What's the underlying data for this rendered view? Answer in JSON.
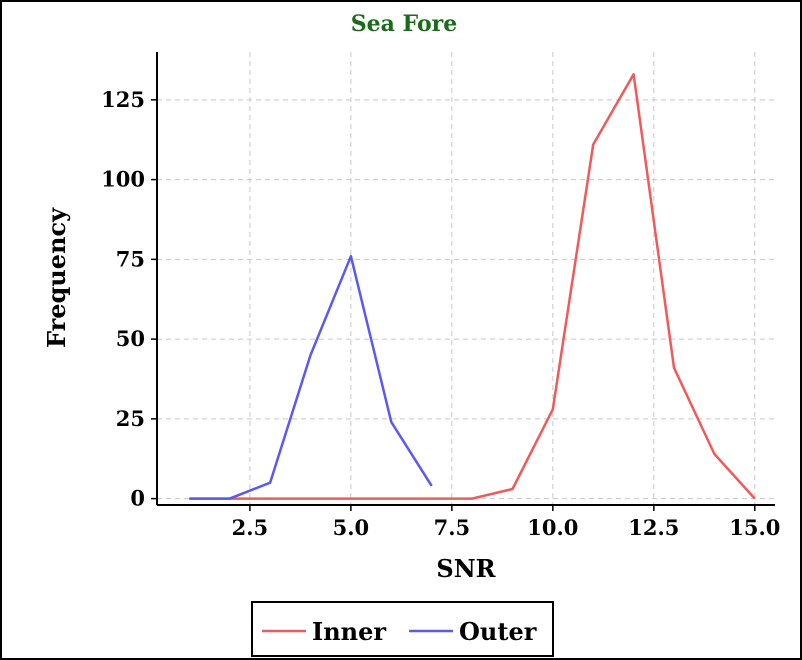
{
  "chart_data": {
    "type": "line",
    "title": "Sea Fore",
    "title_color": "#1a6b1a",
    "xlabel": "SNR",
    "ylabel": "Frequency",
    "xlim": [
      0.2,
      15.5
    ],
    "ylim": [
      -2,
      140
    ],
    "xticks": [
      2.5,
      5.0,
      7.5,
      10.0,
      12.5,
      15.0
    ],
    "xtick_labels": [
      "2.5",
      "5.0",
      "7.5",
      "10.0",
      "12.5",
      "15.0"
    ],
    "yticks": [
      0,
      25,
      50,
      75,
      100,
      125
    ],
    "ytick_labels": [
      "0",
      "25",
      "50",
      "75",
      "100",
      "125"
    ],
    "grid": true,
    "legend_position": "bottom-center",
    "series": [
      {
        "name": "Inner",
        "color": "#f05a5a",
        "x": [
          1,
          2,
          3,
          4,
          5,
          6,
          7,
          8,
          9,
          10,
          11,
          12,
          13,
          14,
          15
        ],
        "y": [
          0,
          0,
          0,
          0,
          0,
          0,
          0,
          0,
          3,
          28,
          111,
          133,
          41,
          14,
          0
        ]
      },
      {
        "name": "Outer",
        "color": "#5a5af0",
        "x": [
          1,
          2,
          3,
          4,
          5,
          6,
          7
        ],
        "y": [
          0,
          0,
          5,
          45,
          76,
          24,
          4
        ]
      }
    ]
  }
}
